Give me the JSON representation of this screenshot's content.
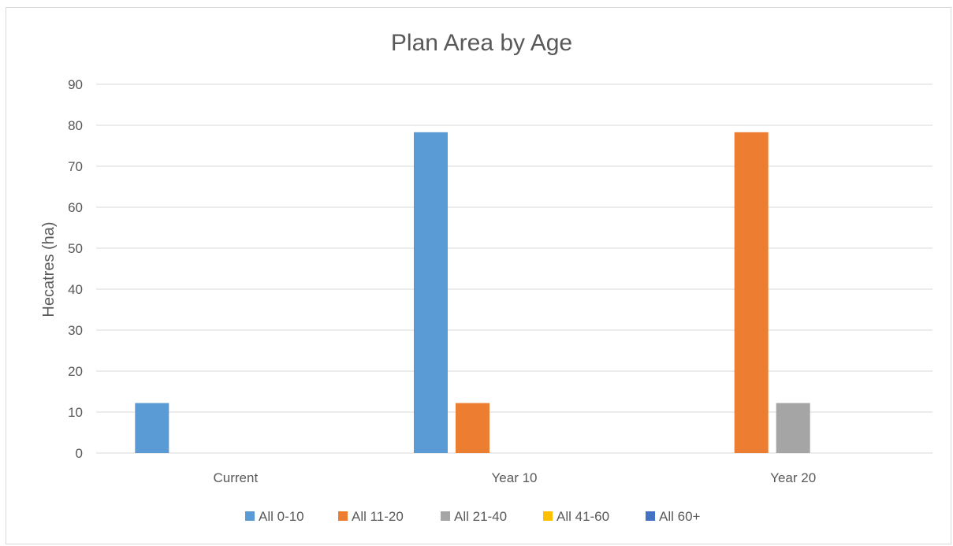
{
  "chart_data": {
    "type": "bar",
    "title": "Plan Area by Age",
    "xlabel": "",
    "ylabel": "Hecatres (ha)",
    "ylim": [
      0,
      90
    ],
    "yticks": [
      0,
      10,
      20,
      30,
      40,
      50,
      60,
      70,
      80,
      90
    ],
    "grid": true,
    "legend_position": "bottom",
    "categories": [
      "Current",
      "Year 10",
      "Year 20"
    ],
    "series": [
      {
        "name": "All 0-10",
        "color": "#5b9bd5",
        "values": [
          12.2,
          78.3,
          0
        ]
      },
      {
        "name": "All 11-20",
        "color": "#ed7d31",
        "values": [
          0,
          12.2,
          78.3
        ]
      },
      {
        "name": "All 21-40",
        "color": "#a5a5a5",
        "values": [
          0,
          0,
          12.2
        ]
      },
      {
        "name": "All 41-60",
        "color": "#ffc000",
        "values": [
          0,
          0,
          0
        ]
      },
      {
        "name": "All 60+",
        "color": "#4472c4",
        "values": [
          0,
          0,
          0
        ]
      }
    ]
  }
}
